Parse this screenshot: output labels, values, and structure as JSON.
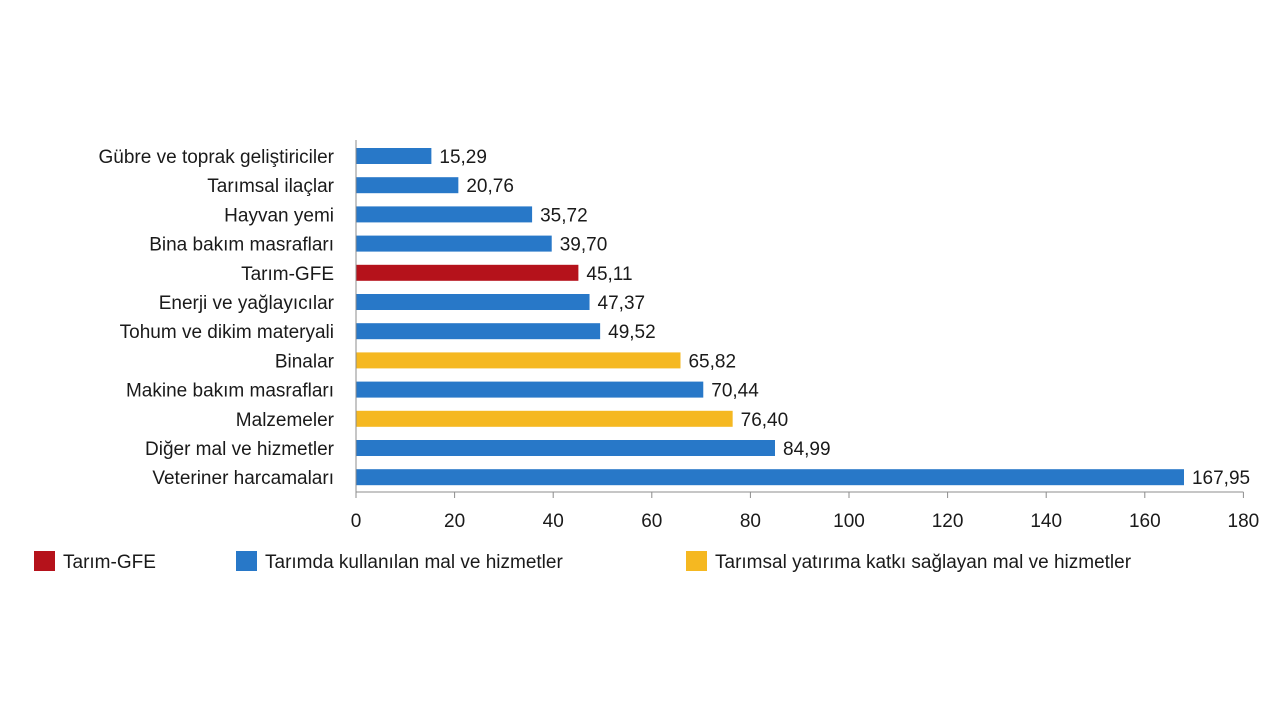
{
  "colors": {
    "Tarım-GFE": "#b5121b",
    "Tarımda kullanılan mal ve hizmetler": "#2878c8",
    "Tarımsal yatırıma katkı sağlayan mal ve hizmetler": "#f5b821"
  },
  "chart_data": {
    "type": "bar",
    "orientation": "horizontal",
    "title": "",
    "xlabel": "",
    "ylabel": "",
    "xlim": [
      0,
      180
    ],
    "xticks": [
      0,
      20,
      40,
      60,
      80,
      100,
      120,
      140,
      160,
      180
    ],
    "grid": false,
    "legend_position": "bottom",
    "categories": [
      "Gübre ve toprak geliştiriciler",
      "Tarımsal ilaçlar",
      "Hayvan yemi",
      "Bina bakım masrafları",
      "Tarım-GFE",
      "Enerji ve yağlayıcılar",
      "Tohum ve dikim materyali",
      "Binalar",
      "Makine bakım masrafları",
      "Malzemeler",
      "Diğer mal ve hizmetler",
      "Veteriner harcamaları"
    ],
    "values": [
      15.29,
      20.76,
      35.72,
      39.7,
      45.11,
      47.37,
      49.52,
      65.82,
      70.44,
      76.4,
      84.99,
      167.95
    ],
    "value_labels": [
      "15,29",
      "20,76",
      "35,72",
      "39,70",
      "45,11",
      "47,37",
      "49,52",
      "65,82",
      "70,44",
      "76,40",
      "84,99",
      "167,95"
    ],
    "bar_groups": [
      "Tarımda kullanılan mal ve hizmetler",
      "Tarımda kullanılan mal ve hizmetler",
      "Tarımda kullanılan mal ve hizmetler",
      "Tarımda kullanılan mal ve hizmetler",
      "Tarım-GFE",
      "Tarımda kullanılan mal ve hizmetler",
      "Tarımda kullanılan mal ve hizmetler",
      "Tarımsal yatırıma katkı sağlayan mal ve hizmetler",
      "Tarımda kullanılan mal ve hizmetler",
      "Tarımsal yatırıma katkı sağlayan mal ve hizmetler",
      "Tarımda kullanılan mal ve hizmetler",
      "Tarımda kullanılan mal ve hizmetler"
    ],
    "legend": [
      "Tarım-GFE",
      "Tarımda kullanılan mal ve hizmetler",
      "Tarımsal yatırıma katkı sağlayan mal ve hizmetler"
    ]
  }
}
